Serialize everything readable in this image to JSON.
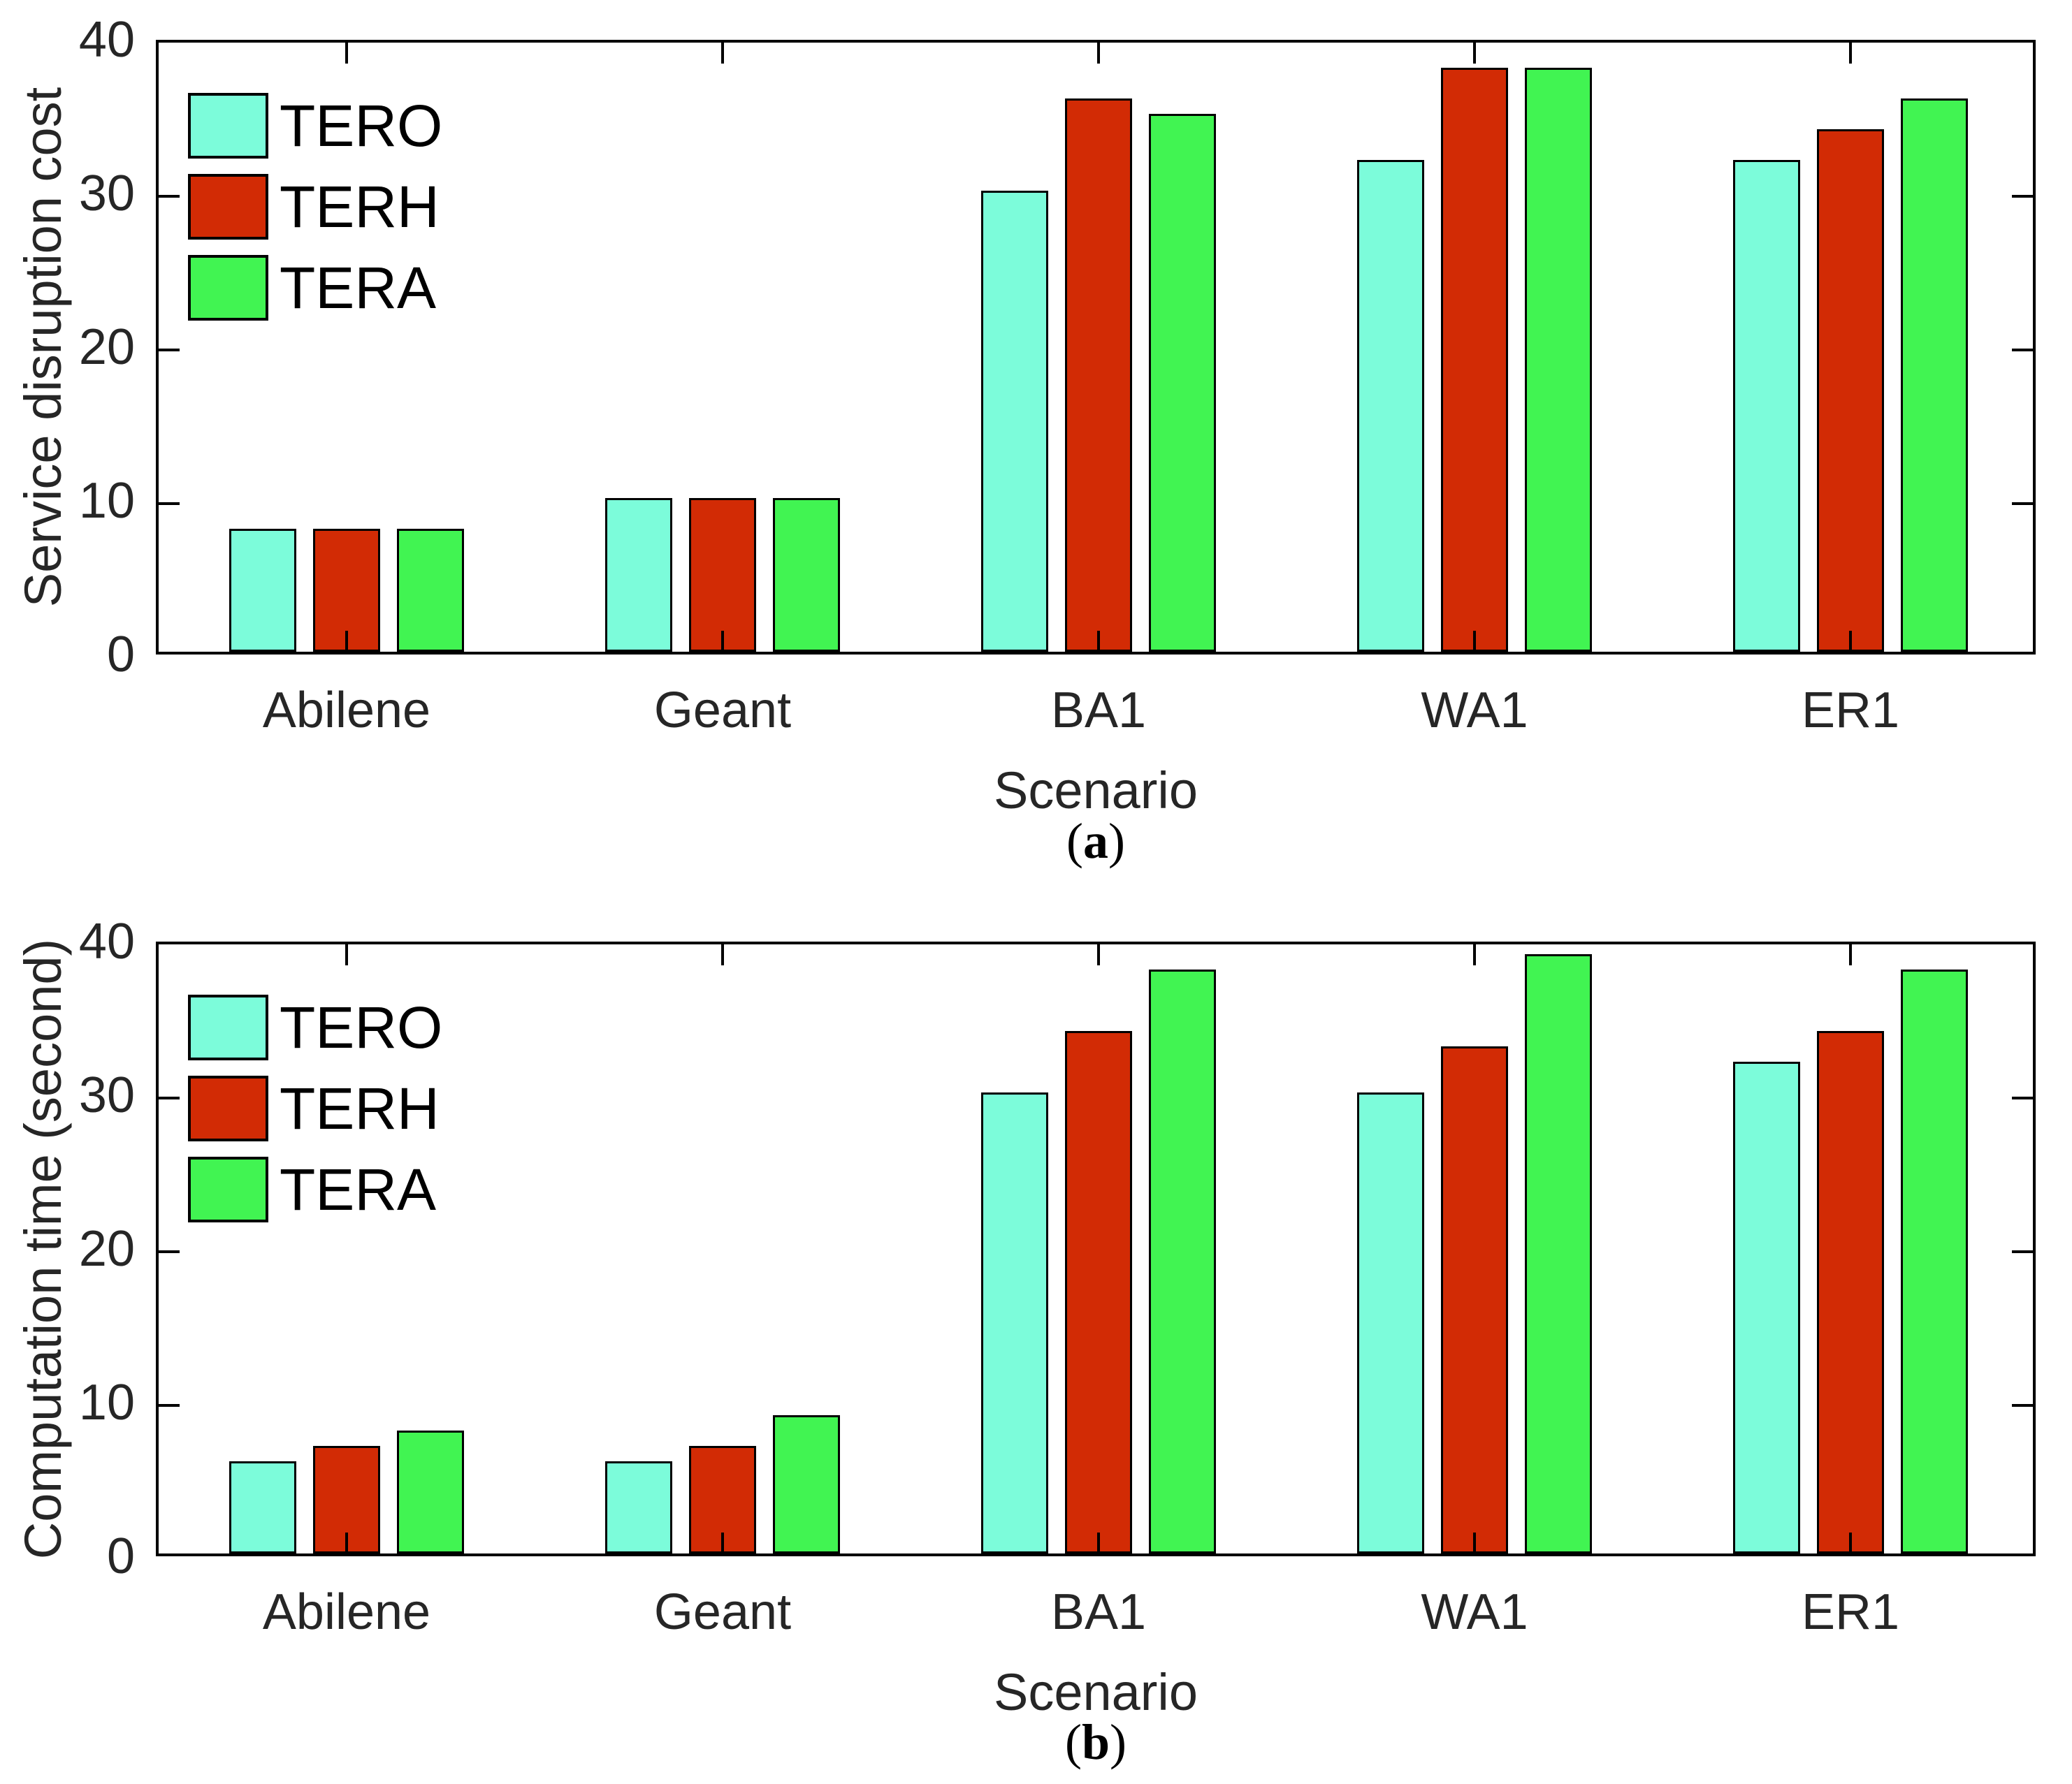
{
  "figure": {
    "background": "#ffffff",
    "axis_color": "#000000",
    "tick_label_color": "#262626"
  },
  "chart_data": [
    {
      "type": "bar",
      "panel": "a",
      "ylabel": "Service disruption cost",
      "xlabel": "Scenario",
      "caption": {
        "open": "(",
        "letter": "a",
        "close": ")"
      },
      "categories": [
        "Abilene",
        "Geant",
        "BA1",
        "WA1",
        "ER1"
      ],
      "series": [
        {
          "name": "TERO",
          "color": "#7CFCDA",
          "values": [
            8,
            10,
            30,
            32,
            32
          ]
        },
        {
          "name": "TERH",
          "color": "#D22B05",
          "values": [
            8,
            10,
            36,
            38,
            34
          ]
        },
        {
          "name": "TERA",
          "color": "#41F452",
          "values": [
            8,
            10,
            35,
            38,
            36
          ]
        }
      ],
      "ylim": [
        0,
        40
      ],
      "yticks": [
        0,
        10,
        20,
        30,
        40
      ],
      "legend_position": "top-left",
      "legend_frame": false,
      "grid": false
    },
    {
      "type": "bar",
      "panel": "b",
      "ylabel": "Computation time (second)",
      "xlabel": "Scenario",
      "caption": {
        "open": "(",
        "letter": "b",
        "close": ")"
      },
      "categories": [
        "Abilene",
        "Geant",
        "BA1",
        "WA1",
        "ER1"
      ],
      "series": [
        {
          "name": "TERO",
          "color": "#7CFCDA",
          "values": [
            6,
            6,
            30,
            30,
            32
          ]
        },
        {
          "name": "TERH",
          "color": "#D22B05",
          "values": [
            7,
            7,
            34,
            33,
            34
          ]
        },
        {
          "name": "TERA",
          "color": "#41F452",
          "values": [
            8,
            9,
            38,
            39,
            38
          ]
        }
      ],
      "ylim": [
        0,
        40
      ],
      "yticks": [
        0,
        10,
        20,
        30,
        40
      ],
      "legend_position": "top-left",
      "legend_frame": false,
      "grid": false
    }
  ]
}
